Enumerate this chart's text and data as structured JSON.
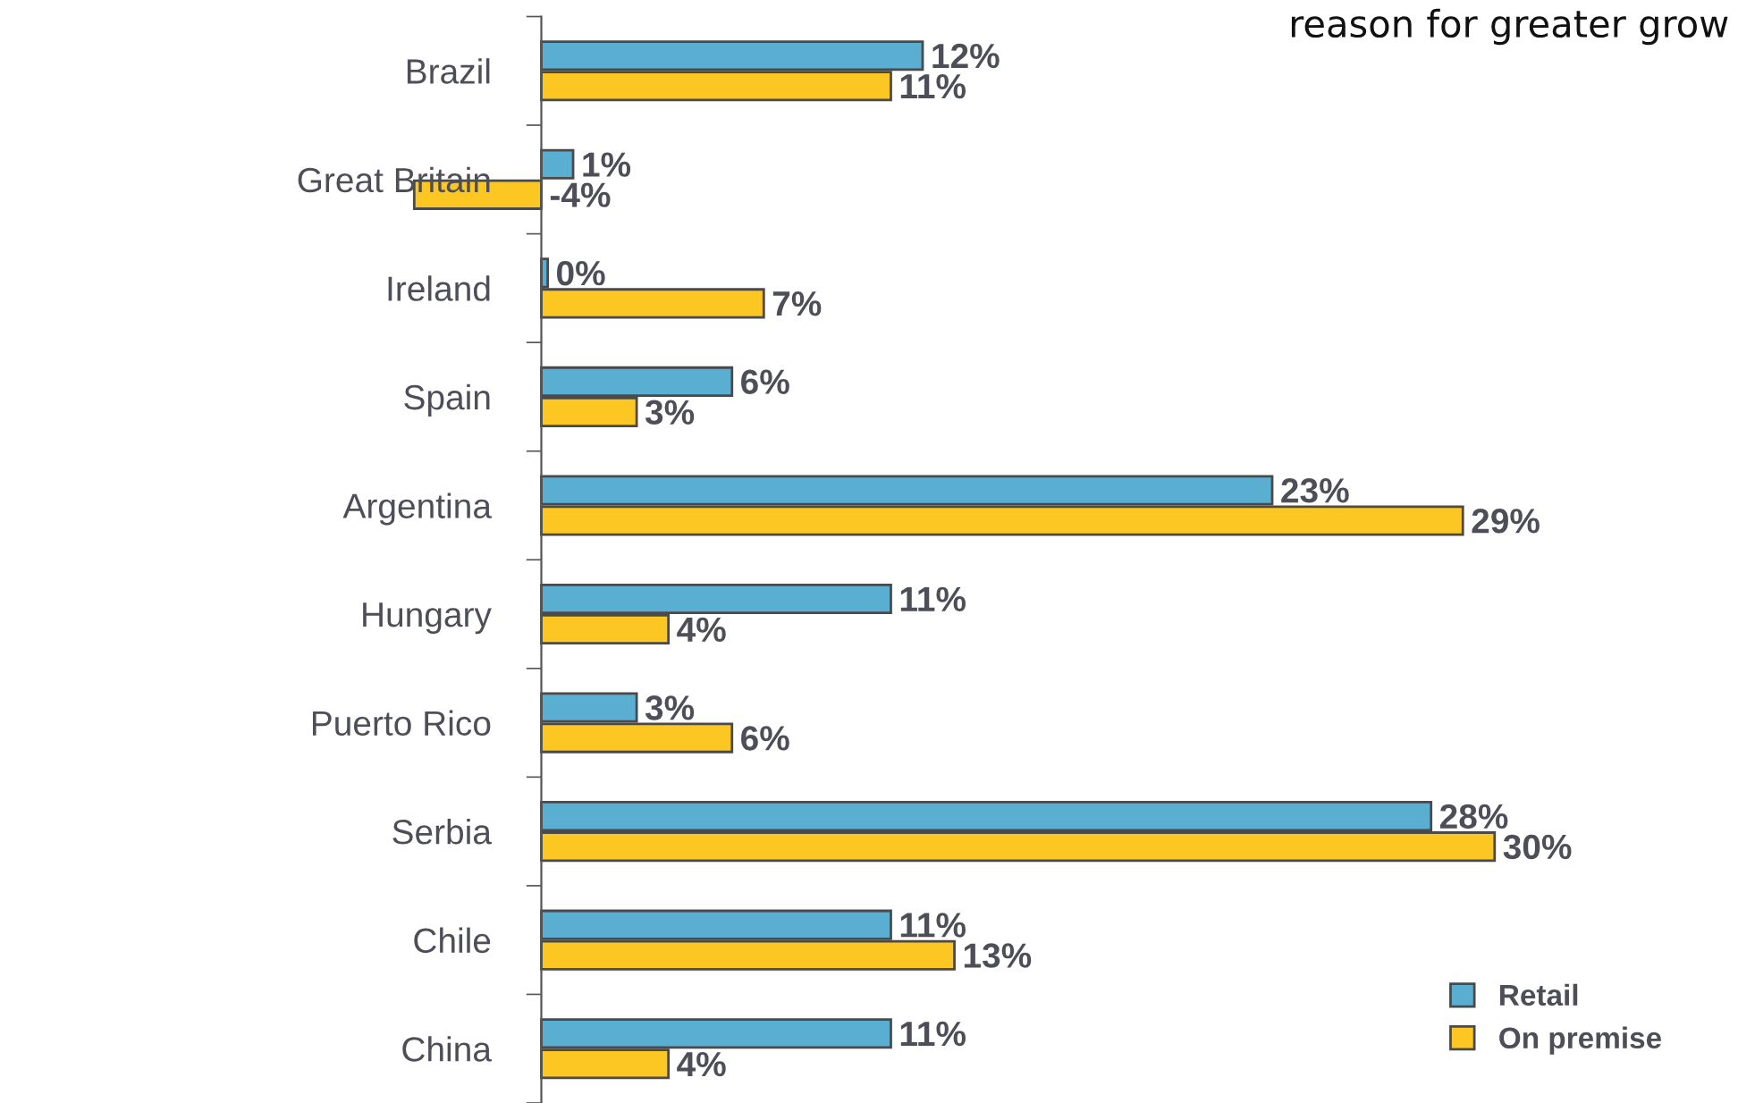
{
  "chart_data": {
    "type": "bar",
    "orientation": "horizontal",
    "categories": [
      "Brazil",
      "Great Britain",
      "Ireland",
      "Spain",
      "Argentina",
      "Hungary",
      "Puerto Rico",
      "Serbia",
      "Chile",
      "China"
    ],
    "series": [
      {
        "name": "Retail",
        "color": "#5aaed2",
        "values": [
          12,
          1,
          0.2,
          6,
          23,
          11,
          3,
          28,
          11,
          11
        ],
        "value_labels": [
          "12%",
          "1%",
          "0%",
          "6%",
          "23%",
          "11%",
          "3%",
          "28%",
          "11%",
          "11%"
        ]
      },
      {
        "name": "On premise",
        "color": "#fcc623",
        "values": [
          11,
          -4,
          7,
          3,
          29,
          4,
          6,
          30,
          13,
          4
        ],
        "value_labels": [
          "11%",
          "-4%",
          "7%",
          "3%",
          "29%",
          "4%",
          "6%",
          "30%",
          "13%",
          "4%"
        ]
      }
    ],
    "legend": "bottom right",
    "grid": false,
    "tick_labels": "y",
    "annotations": [
      "reason for greater grow"
    ]
  }
}
